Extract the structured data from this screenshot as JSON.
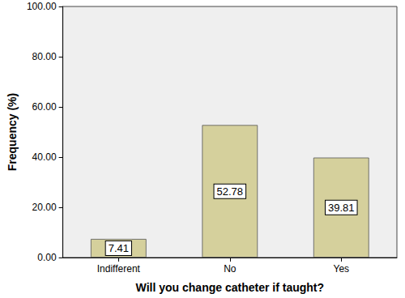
{
  "chart_data": {
    "type": "bar",
    "x_label": "Will you change catheter if taught?",
    "y_label": "Frequency (%)",
    "categories": [
      "Indifferent",
      "No",
      "Yes"
    ],
    "values": [
      7.41,
      52.78,
      39.81
    ],
    "color": "#d5d09c",
    "ylim": [
      0,
      100
    ],
    "yticks": [
      {
        "value": 0,
        "label": "0.00"
      },
      {
        "value": 20,
        "label": "20.00"
      },
      {
        "value": 40,
        "label": "40.00"
      },
      {
        "value": 60,
        "label": "60.00"
      },
      {
        "value": 80,
        "label": "80.00"
      },
      {
        "value": 100,
        "label": "100.00"
      }
    ],
    "grid": false,
    "data_labels": true
  }
}
